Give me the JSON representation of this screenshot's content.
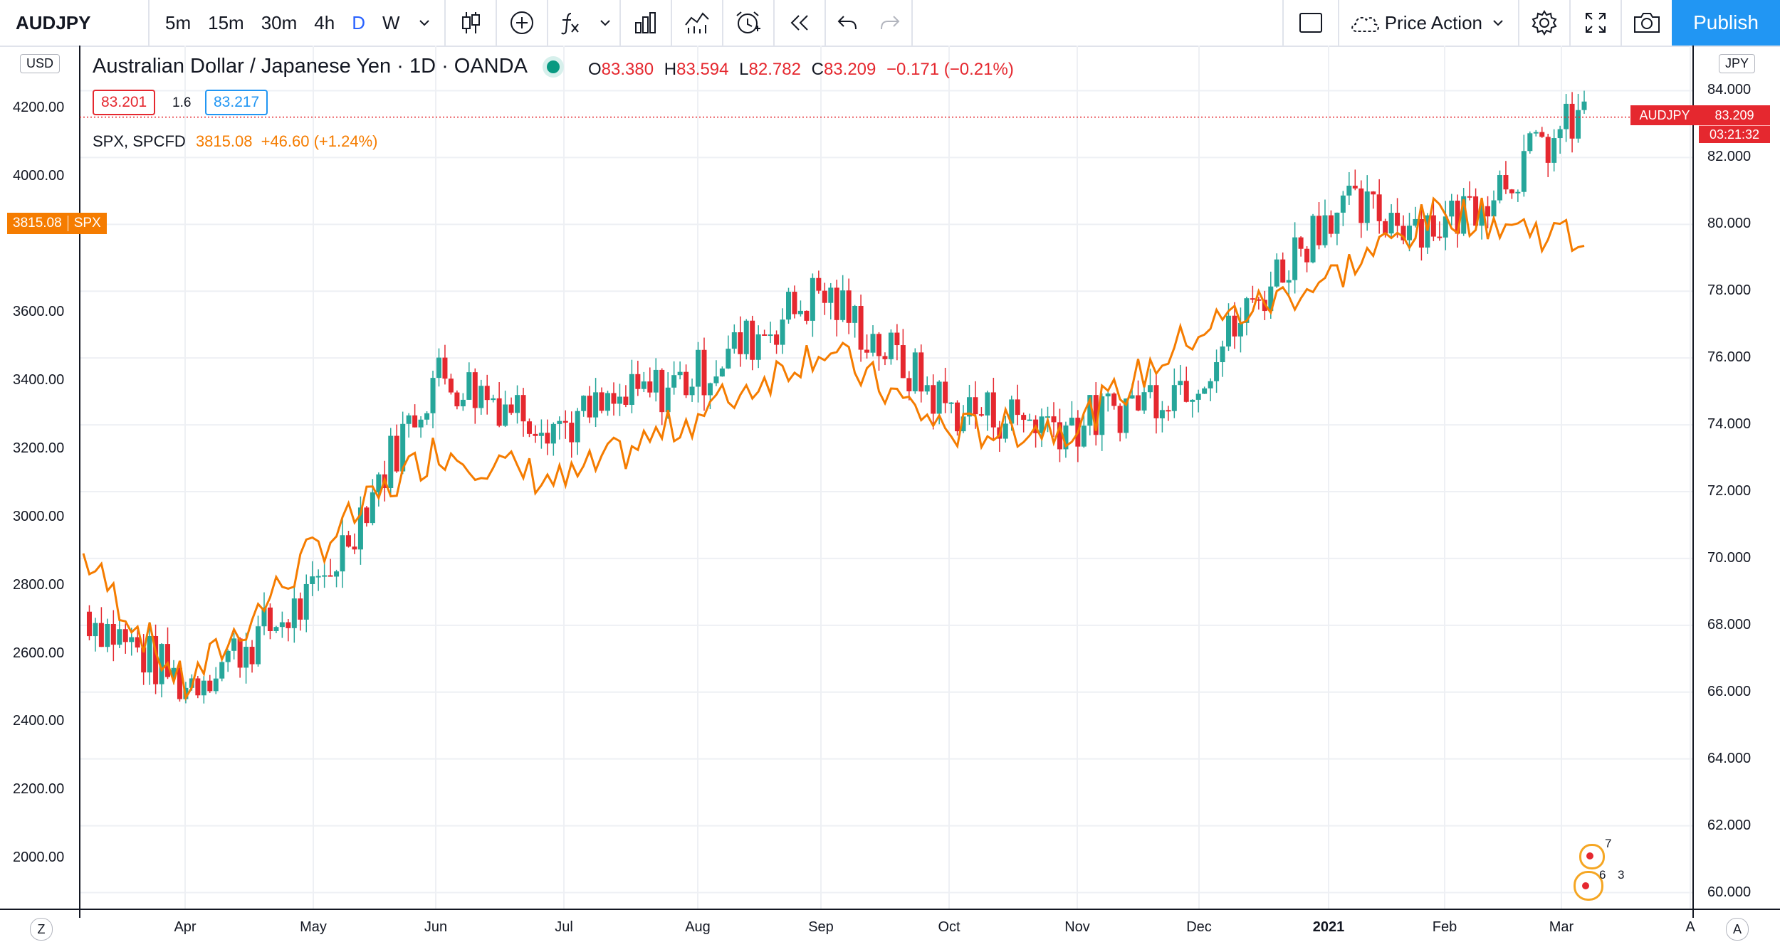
{
  "toolbar": {
    "symbol": "AUDJPY",
    "intervals": [
      "5m",
      "15m",
      "30m",
      "4h",
      "D",
      "W"
    ],
    "active_interval": "D",
    "template_label": "Price Action",
    "publish_label": "Publish",
    "icons": [
      "chevron-down-icon",
      "candles-icon",
      "add-indicator-icon",
      "fx-icon",
      "chevron-down-icon",
      "bar-chart-icon",
      "indicators-icon",
      "alert-icon",
      "replay-icon",
      "undo-icon",
      "redo-icon",
      "rectangle-icon",
      "cloud-icon",
      "chevron-down-icon",
      "settings-icon",
      "fullscreen-icon",
      "camera-icon"
    ]
  },
  "legend": {
    "title": "Australian Dollar / Japanese Yen · 1D · OANDA",
    "o_label": "O",
    "o_value": "83.380",
    "h_label": "H",
    "h_value": "83.594",
    "l_label": "L",
    "l_value": "82.782",
    "c_label": "C",
    "c_value": "83.209",
    "change": "−0.171 (−0.21%)",
    "bid": "83.201",
    "spread": "1.6",
    "ask": "83.217",
    "spx_name": "SPX, SPCFD",
    "spx_value": "3815.08",
    "spx_change": "+46.60 (+1.24%)"
  },
  "left_axis": {
    "unit": "USD",
    "ticks": [
      "4200.00",
      "4000.00",
      "3600.00",
      "3400.00",
      "3200.00",
      "3000.00",
      "2800.00",
      "2600.00",
      "2400.00",
      "2200.00",
      "2000.00"
    ]
  },
  "right_axis": {
    "unit": "JPY",
    "ticks": [
      "84.000",
      "82.000",
      "80.000",
      "78.000",
      "76.000",
      "74.000",
      "72.000",
      "70.000",
      "68.000",
      "66.000",
      "64.000",
      "62.000",
      "60.000"
    ]
  },
  "x_axis": {
    "labels": [
      "Apr",
      "May",
      "Jun",
      "Jul",
      "Aug",
      "Sep",
      "Oct",
      "Nov",
      "Dec",
      "2021",
      "Feb",
      "Mar",
      "A"
    ],
    "corner_left": "Z",
    "corner_right": "A"
  },
  "price_tag": {
    "symbol": "AUDJPY",
    "value": "83.209",
    "countdown": "03:21:32"
  },
  "spx_tag": {
    "value": "3815.08",
    "symbol": "SPX"
  },
  "badges": [
    "7",
    "6",
    "3"
  ],
  "colors": {
    "up": "#26a69a",
    "down": "#e5282f",
    "overlay": "#f57c00",
    "accent": "#2196f3"
  },
  "chart_data": {
    "type": "line",
    "title": "Australian Dollar / Japanese Yen · 1D · OANDA",
    "x": [
      "Mar",
      "Apr",
      "May",
      "Jun",
      "Jul",
      "Aug",
      "Sep",
      "Oct",
      "Nov",
      "Dec",
      "2021",
      "Feb",
      "Mar"
    ],
    "series": [
      {
        "name": "AUDJPY",
        "axis": "right",
        "values": [
          68.5,
          66.2,
          68.8,
          75.5,
          74.0,
          75.5,
          78.0,
          74.5,
          74.0,
          75.5,
          80.5,
          80.0,
          83.2
        ]
      },
      {
        "name": "SPX, SPCFD",
        "axis": "left",
        "values": [
          2900,
          2500,
          2900,
          3200,
          3100,
          3300,
          3500,
          3250,
          3270,
          3550,
          3700,
          3900,
          3815.08
        ]
      }
    ],
    "ylim_left": [
      1850,
      4300
    ],
    "ylim_right": [
      59.5,
      84.5
    ]
  }
}
